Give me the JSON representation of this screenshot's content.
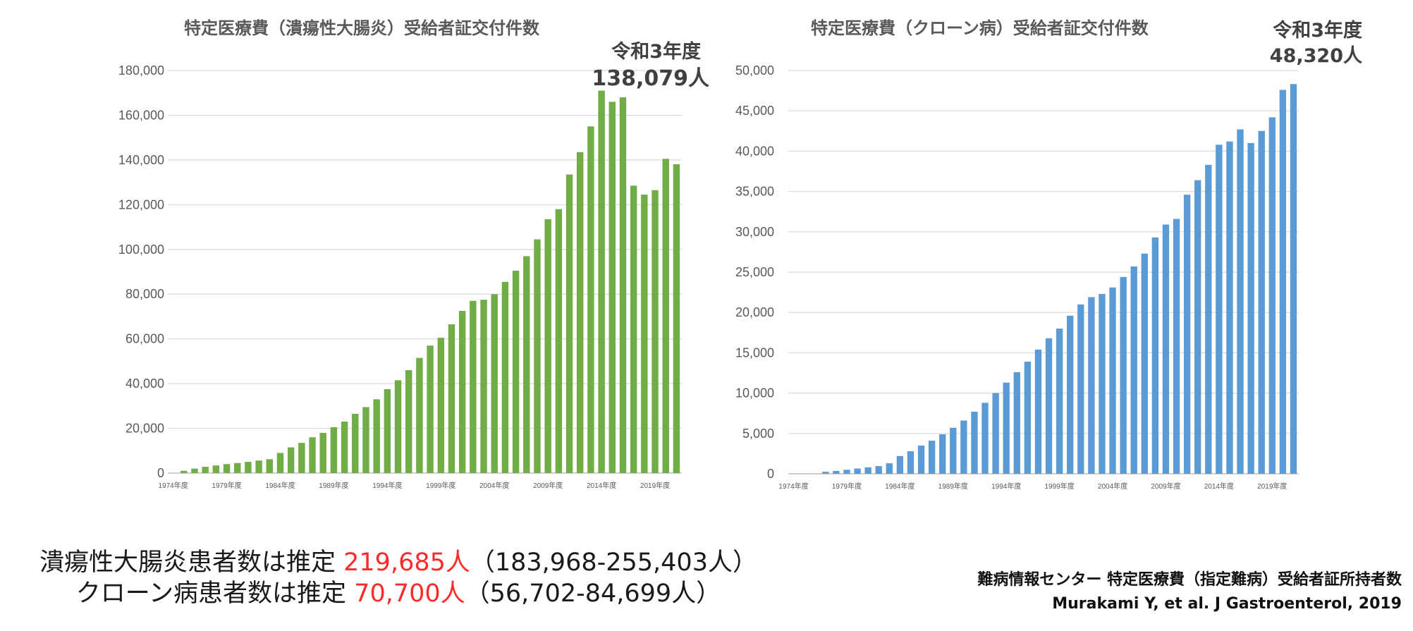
{
  "colors": {
    "uc_bar": "#70ad47",
    "cd_bar": "#5b9bd5",
    "highlight": "#ff2a2a",
    "gridline": "#d9d9d9"
  },
  "chart_data": [
    {
      "type": "bar",
      "title": "特定医療費（潰瘍性大腸炎）受給者証交付件数",
      "ylim": [
        0,
        180000
      ],
      "yticks": [
        "0",
        "20,000",
        "40,000",
        "60,000",
        "80,000",
        "100,000",
        "120,000",
        "140,000",
        "160,000",
        "180,000"
      ],
      "xtick_labels": [
        "1974年度",
        "1979年度",
        "1984年度",
        "1989年度",
        "1994年度",
        "1999年度",
        "2004年度",
        "2009年度",
        "2014年度",
        "2019年度"
      ],
      "xlabel": "",
      "ylabel": "",
      "grid": true,
      "legend": "none",
      "callout": {
        "label": "令和3年度",
        "value": "138,079人"
      },
      "categories": [
        "1974年度",
        "1975年度",
        "1976年度",
        "1977年度",
        "1978年度",
        "1979年度",
        "1980年度",
        "1981年度",
        "1982年度",
        "1983年度",
        "1984年度",
        "1985年度",
        "1986年度",
        "1987年度",
        "1988年度",
        "1989年度",
        "1990年度",
        "1991年度",
        "1992年度",
        "1993年度",
        "1994年度",
        "1995年度",
        "1996年度",
        "1997年度",
        "1998年度",
        "1999年度",
        "2000年度",
        "2001年度",
        "2002年度",
        "2003年度",
        "2004年度",
        "2005年度",
        "2006年度",
        "2007年度",
        "2008年度",
        "2009年度",
        "2010年度",
        "2011年度",
        "2012年度",
        "2013年度",
        "2014年度",
        "2015年度",
        "2016年度",
        "2017年度",
        "2018年度",
        "2019年度",
        "2020年度",
        "2021年度"
      ],
      "values": [
        0,
        1000,
        2000,
        2800,
        3400,
        4000,
        4500,
        5000,
        5600,
        6200,
        9000,
        11500,
        13500,
        16000,
        18000,
        20500,
        23000,
        26500,
        29500,
        33000,
        37500,
        41500,
        46000,
        51500,
        57000,
        60500,
        66500,
        72500,
        77000,
        77500,
        80000,
        85500,
        90500,
        97000,
        104500,
        113500,
        118000,
        133500,
        143500,
        155000,
        171000,
        166000,
        168000,
        128500,
        124500,
        126500,
        140500,
        138079
      ]
    },
    {
      "type": "bar",
      "title": "特定医療費（クローン病）受給者証交付件数",
      "ylim": [
        0,
        50000
      ],
      "yticks": [
        "0",
        "5,000",
        "10,000",
        "15,000",
        "20,000",
        "25,000",
        "30,000",
        "35,000",
        "40,000",
        "45,000",
        "50,000"
      ],
      "xtick_labels": [
        "1974年度",
        "1979年度",
        "1984年度",
        "1989年度",
        "1994年度",
        "1999年度",
        "2004年度",
        "2009年度",
        "2014年度",
        "2019年度"
      ],
      "xlabel": "",
      "ylabel": "",
      "grid": true,
      "legend": "none",
      "callout": {
        "label": "令和3年度",
        "value": "48,320人"
      },
      "categories": [
        "1974年度",
        "1975年度",
        "1976年度",
        "1977年度",
        "1978年度",
        "1979年度",
        "1980年度",
        "1981年度",
        "1982年度",
        "1983年度",
        "1984年度",
        "1985年度",
        "1986年度",
        "1987年度",
        "1988年度",
        "1989年度",
        "1990年度",
        "1991年度",
        "1992年度",
        "1993年度",
        "1994年度",
        "1995年度",
        "1996年度",
        "1997年度",
        "1998年度",
        "1999年度",
        "2000年度",
        "2001年度",
        "2002年度",
        "2003年度",
        "2004年度",
        "2005年度",
        "2006年度",
        "2007年度",
        "2008年度",
        "2009年度",
        "2010年度",
        "2011年度",
        "2012年度",
        "2013年度",
        "2014年度",
        "2015年度",
        "2016年度",
        "2017年度",
        "2018年度",
        "2019年度",
        "2020年度",
        "2021年度"
      ],
      "values": [
        0,
        0,
        0,
        250,
        350,
        500,
        650,
        800,
        950,
        1300,
        2200,
        2800,
        3500,
        4100,
        4900,
        5700,
        6600,
        7700,
        8800,
        10000,
        11300,
        12600,
        13900,
        15400,
        16800,
        18000,
        19600,
        21000,
        21900,
        22300,
        23100,
        24400,
        25700,
        27300,
        29300,
        30900,
        31600,
        34600,
        36400,
        38300,
        40800,
        41200,
        42700,
        41000,
        42500,
        44200,
        47600,
        48320
      ]
    }
  ],
  "summary": {
    "uc_prefix": "潰瘍性大腸炎患者数は推定 ",
    "uc_estimate": "219,685人",
    "uc_range": "（183,968-255,403人）",
    "cd_prefix": "クローン病患者数は推定 ",
    "cd_estimate": "70,700人",
    "cd_range": "（56,702-84,699人）"
  },
  "source": {
    "line1": "難病情報センター 特定医療費（指定難病）受給者証所持者数",
    "line2": "Murakami Y, et al. J Gastroenterol, 2019"
  }
}
